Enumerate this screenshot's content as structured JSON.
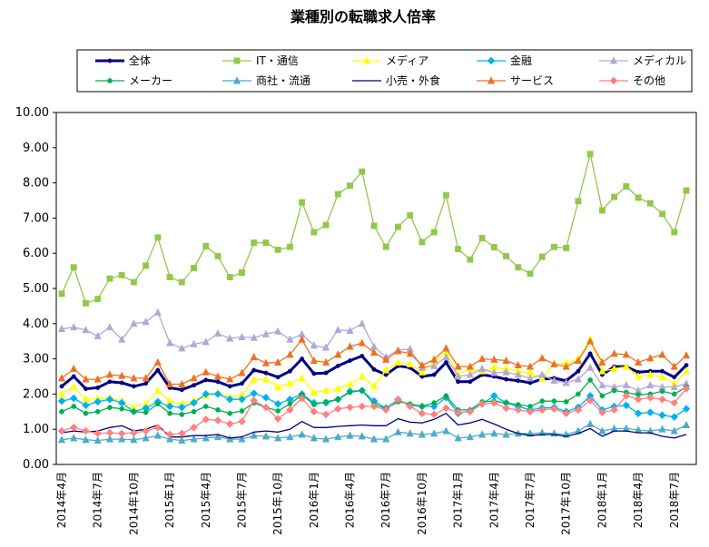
{
  "chart_data": {
    "type": "line",
    "title": "業種別の転職求人倍率",
    "categories": [
      "2014年4月",
      null,
      null,
      "2014年7月",
      null,
      null,
      "2014年10月",
      null,
      null,
      "2015年1月",
      null,
      null,
      "2015年4月",
      null,
      null,
      "2015年7月",
      null,
      null,
      "2015年10月",
      null,
      null,
      "2016年1月",
      null,
      null,
      "2016年4月",
      null,
      null,
      "2016年7月",
      null,
      null,
      "2016年10月",
      null,
      null,
      "2017年1月",
      null,
      null,
      "2017年4月",
      null,
      null,
      "2017年7月",
      null,
      null,
      "2017年10月",
      null,
      null,
      "2018年1月",
      null,
      null,
      "2018年4月",
      null,
      null,
      "2018年7月",
      null
    ],
    "ylim": [
      0,
      10
    ],
    "yticks": [
      {
        "value": 0,
        "label": "0.00"
      },
      {
        "value": 1,
        "label": "1.00"
      },
      {
        "value": 2,
        "label": "2.00"
      },
      {
        "value": 3,
        "label": "3.00"
      },
      {
        "value": 4,
        "label": "4.00"
      },
      {
        "value": 5,
        "label": "5.00"
      },
      {
        "value": 6,
        "label": "6.00"
      },
      {
        "value": 7,
        "label": "7.00"
      },
      {
        "value": 8,
        "label": "8.00"
      },
      {
        "value": 9,
        "label": "9.00"
      },
      {
        "value": 10,
        "label": "10.00"
      }
    ],
    "grid": false,
    "series": [
      {
        "name": "全体",
        "color": "#000080",
        "width": 3,
        "marker": "star",
        "values": [
          2.22,
          2.5,
          2.15,
          2.18,
          2.35,
          2.32,
          2.22,
          2.3,
          2.68,
          2.18,
          2.12,
          2.25,
          2.4,
          2.35,
          2.22,
          2.3,
          2.68,
          2.6,
          2.48,
          2.65,
          3.0,
          2.58,
          2.6,
          2.8,
          2.95,
          3.08,
          2.7,
          2.55,
          2.8,
          2.75,
          2.5,
          2.55,
          2.9,
          2.35,
          2.35,
          2.55,
          2.5,
          2.42,
          2.38,
          2.32,
          2.42,
          2.45,
          2.38,
          2.65,
          3.15,
          2.55,
          2.78,
          2.78,
          2.62,
          2.65,
          2.65,
          2.48,
          2.82
        ]
      },
      {
        "name": "IT・通信",
        "color": "#92c84a",
        "width": 1.3,
        "marker": "square",
        "values": [
          4.85,
          5.6,
          4.58,
          4.7,
          5.28,
          5.38,
          5.18,
          5.65,
          6.45,
          5.32,
          5.18,
          5.58,
          6.2,
          5.92,
          5.32,
          5.45,
          6.3,
          6.3,
          6.1,
          6.18,
          7.45,
          6.6,
          6.8,
          7.68,
          7.92,
          8.32,
          6.78,
          6.18,
          6.75,
          7.08,
          6.32,
          6.6,
          7.65,
          6.12,
          5.82,
          6.43,
          6.17,
          5.92,
          5.6,
          5.42,
          5.9,
          6.18,
          6.15,
          7.48,
          8.82,
          7.22,
          7.6,
          7.9,
          7.58,
          7.42,
          7.12,
          6.6,
          7.78
        ]
      },
      {
        "name": "メディア",
        "color": "#ffff00",
        "width": 1.3,
        "marker": "triangle",
        "values": [
          2.0,
          2.2,
          1.85,
          1.88,
          1.9,
          1.8,
          1.62,
          1.72,
          2.1,
          1.8,
          1.72,
          1.82,
          1.95,
          2.05,
          1.9,
          1.98,
          2.4,
          2.42,
          2.2,
          2.3,
          2.45,
          2.05,
          2.1,
          2.15,
          2.28,
          2.5,
          2.22,
          2.68,
          2.9,
          2.85,
          2.62,
          2.9,
          3.2,
          2.55,
          2.72,
          2.65,
          2.75,
          2.72,
          2.65,
          2.6,
          2.45,
          2.85,
          2.88,
          3.0,
          3.55,
          2.65,
          2.72,
          2.78,
          2.5,
          2.55,
          2.48,
          2.3,
          2.65
        ]
      },
      {
        "name": "金融",
        "color": "#00b0f0",
        "width": 1.3,
        "marker": "diamond",
        "values": [
          1.8,
          1.88,
          1.68,
          1.78,
          1.85,
          1.75,
          1.5,
          1.6,
          1.78,
          1.65,
          1.62,
          1.75,
          2.0,
          2.0,
          1.85,
          1.85,
          2.02,
          1.9,
          1.72,
          1.85,
          2.0,
          1.75,
          1.75,
          1.85,
          2.08,
          2.1,
          1.8,
          1.6,
          1.85,
          1.68,
          1.65,
          1.65,
          1.9,
          1.45,
          1.52,
          1.72,
          1.95,
          1.75,
          1.65,
          1.55,
          1.6,
          1.62,
          1.5,
          1.62,
          1.95,
          1.55,
          1.65,
          1.68,
          1.45,
          1.48,
          1.4,
          1.35,
          1.58
        ]
      },
      {
        "name": "メディカル",
        "color": "#b4a7d6",
        "width": 1.3,
        "marker": "triangle",
        "values": [
          3.85,
          3.9,
          3.82,
          3.65,
          3.9,
          3.55,
          4.0,
          4.05,
          4.32,
          3.45,
          3.3,
          3.42,
          3.48,
          3.72,
          3.58,
          3.62,
          3.6,
          3.7,
          3.78,
          3.55,
          3.7,
          3.38,
          3.32,
          3.82,
          3.8,
          4.0,
          3.35,
          3.05,
          3.25,
          3.28,
          2.75,
          2.8,
          3.05,
          2.5,
          2.55,
          2.72,
          2.6,
          2.62,
          2.55,
          2.45,
          2.55,
          2.38,
          2.32,
          2.42,
          2.75,
          2.25,
          2.2,
          2.25,
          2.1,
          2.25,
          2.2,
          2.2,
          2.3
        ]
      },
      {
        "name": "メーカー",
        "color": "#00b050",
        "width": 1.3,
        "marker": "circle",
        "values": [
          1.5,
          1.65,
          1.45,
          1.5,
          1.62,
          1.58,
          1.5,
          1.48,
          1.72,
          1.45,
          1.42,
          1.5,
          1.65,
          1.55,
          1.45,
          1.52,
          1.75,
          1.62,
          1.52,
          1.72,
          1.98,
          1.7,
          1.78,
          1.85,
          2.05,
          2.1,
          1.72,
          1.58,
          1.78,
          1.72,
          1.65,
          1.75,
          1.95,
          1.55,
          1.55,
          1.78,
          1.8,
          1.75,
          1.7,
          1.65,
          1.8,
          1.8,
          1.78,
          2.0,
          2.4,
          1.95,
          2.1,
          2.05,
          1.98,
          2.0,
          2.08,
          2.0,
          2.2
        ]
      },
      {
        "name": "商社・流通",
        "color": "#4bacc6",
        "width": 1.3,
        "marker": "triangle",
        "values": [
          0.7,
          0.75,
          0.7,
          0.68,
          0.72,
          0.72,
          0.7,
          0.75,
          0.82,
          0.72,
          0.68,
          0.72,
          0.75,
          0.78,
          0.72,
          0.72,
          0.82,
          0.8,
          0.75,
          0.78,
          0.85,
          0.75,
          0.72,
          0.78,
          0.82,
          0.8,
          0.72,
          0.72,
          0.92,
          0.88,
          0.85,
          0.88,
          0.95,
          0.75,
          0.78,
          0.85,
          0.88,
          0.85,
          0.88,
          0.88,
          0.9,
          0.88,
          0.85,
          0.95,
          1.15,
          0.95,
          1.02,
          1.02,
          0.98,
          0.95,
          1.0,
          0.95,
          1.12
        ]
      },
      {
        "name": "小売・外食",
        "color": "#000080",
        "width": 1.3,
        "marker": "none",
        "values": [
          0.9,
          0.95,
          0.92,
          0.95,
          1.05,
          1.1,
          0.95,
          1.0,
          1.12,
          0.78,
          0.78,
          0.82,
          0.82,
          0.85,
          0.75,
          0.78,
          0.92,
          0.95,
          0.92,
          1.0,
          1.22,
          1.05,
          1.05,
          1.08,
          1.1,
          1.12,
          1.1,
          1.1,
          1.3,
          1.2,
          1.18,
          1.28,
          1.45,
          1.12,
          1.18,
          1.28,
          1.15,
          1.0,
          0.88,
          0.82,
          0.85,
          0.85,
          0.8,
          0.88,
          1.02,
          0.8,
          0.95,
          0.95,
          0.9,
          0.9,
          0.8,
          0.75,
          0.85
        ]
      },
      {
        "name": "サービス",
        "color": "#f07020",
        "width": 1.3,
        "marker": "triangle",
        "values": [
          2.45,
          2.72,
          2.42,
          2.42,
          2.55,
          2.52,
          2.45,
          2.45,
          2.9,
          2.28,
          2.28,
          2.45,
          2.62,
          2.5,
          2.42,
          2.6,
          3.05,
          2.88,
          2.9,
          3.12,
          3.55,
          2.95,
          2.9,
          3.12,
          3.35,
          3.45,
          3.18,
          2.98,
          3.22,
          3.15,
          2.82,
          2.98,
          3.3,
          2.78,
          2.78,
          3.0,
          2.98,
          2.95,
          2.82,
          2.78,
          3.02,
          2.85,
          2.78,
          2.95,
          3.5,
          2.9,
          3.15,
          3.12,
          2.9,
          3.02,
          3.12,
          2.78,
          3.1
        ]
      },
      {
        "name": "その他",
        "color": "#ff8080",
        "width": 1.3,
        "marker": "diamond",
        "values": [
          0.95,
          1.05,
          0.95,
          0.88,
          0.9,
          0.88,
          0.9,
          0.95,
          1.05,
          0.85,
          0.88,
          1.05,
          1.28,
          1.25,
          1.15,
          1.22,
          1.82,
          1.62,
          1.3,
          1.55,
          1.88,
          1.5,
          1.42,
          1.58,
          1.62,
          1.65,
          1.65,
          1.55,
          1.85,
          1.65,
          1.45,
          1.42,
          1.6,
          1.48,
          1.5,
          1.72,
          1.75,
          1.6,
          1.55,
          1.5,
          1.55,
          1.58,
          1.45,
          1.55,
          1.82,
          1.48,
          1.55,
          1.95,
          1.85,
          1.9,
          1.85,
          1.75,
          2.15
        ]
      }
    ]
  }
}
